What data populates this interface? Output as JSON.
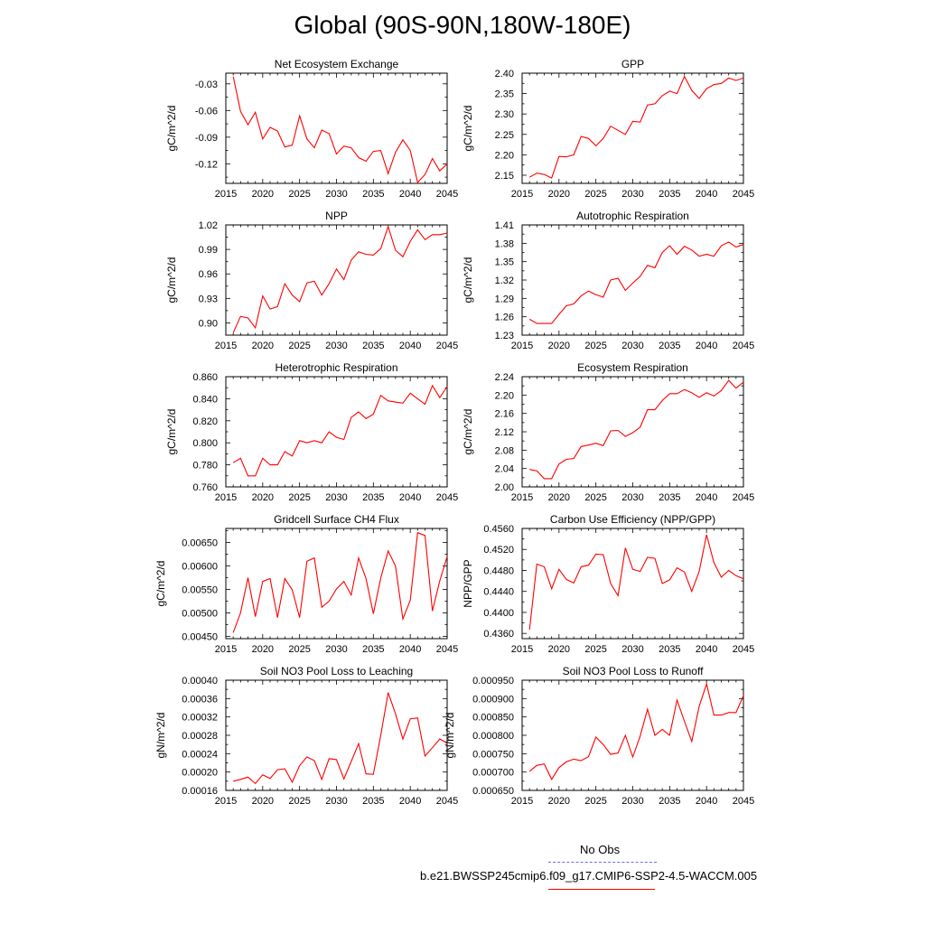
{
  "title": "Global (90S-90N,180W-180E)",
  "colors": {
    "model": "#ff0000",
    "obs": "#6a6aff"
  },
  "legend": {
    "obs_label": "No Obs",
    "model_label": "b.e21.BWSSP245cmip6.f09_g17.CMIP6-SSP2-4.5-WACCM.005"
  },
  "chart_data": [
    {
      "type": "line",
      "title": "Net Ecosystem Exchange",
      "ylabel": "gC/m^2/d",
      "xlim": [
        2015,
        2045
      ],
      "ylim": [
        -0.142,
        -0.018
      ],
      "xticks": [
        2015,
        2020,
        2025,
        2030,
        2035,
        2040,
        2045
      ],
      "yticks": [
        -0.03,
        -0.06,
        -0.09,
        -0.12
      ],
      "ytick_labels": [
        "-0.03",
        "-0.06",
        "-0.09",
        "-0.12"
      ],
      "series": [
        {
          "x": [
            2016,
            2017,
            2018,
            2019,
            2020,
            2021,
            2022,
            2023,
            2024,
            2025,
            2026,
            2027,
            2028,
            2029,
            2030,
            2031,
            2032,
            2033,
            2034,
            2035,
            2036,
            2037,
            2038,
            2039,
            2040,
            2041,
            2042,
            2043,
            2044,
            2045
          ],
          "y": [
            -0.022,
            -0.061,
            -0.076,
            -0.062,
            -0.092,
            -0.079,
            -0.083,
            -0.101,
            -0.099,
            -0.066,
            -0.092,
            -0.102,
            -0.082,
            -0.086,
            -0.109,
            -0.1,
            -0.102,
            -0.113,
            -0.117,
            -0.106,
            -0.105,
            -0.131,
            -0.107,
            -0.093,
            -0.105,
            -0.141,
            -0.132,
            -0.114,
            -0.128,
            -0.12
          ]
        }
      ]
    },
    {
      "type": "line",
      "title": "GPP",
      "ylabel": "gC/m^2/d",
      "xlim": [
        2015,
        2045
      ],
      "ylim": [
        2.13,
        2.4
      ],
      "xticks": [
        2015,
        2020,
        2025,
        2030,
        2035,
        2040,
        2045
      ],
      "yticks": [
        2.15,
        2.2,
        2.25,
        2.3,
        2.35,
        2.4
      ],
      "ytick_labels": [
        "2.15",
        "2.20",
        "2.25",
        "2.30",
        "2.35",
        "2.40"
      ],
      "series": [
        {
          "x": [
            2016,
            2017,
            2018,
            2019,
            2020,
            2021,
            2022,
            2023,
            2024,
            2025,
            2026,
            2027,
            2028,
            2029,
            2030,
            2031,
            2032,
            2033,
            2034,
            2035,
            2036,
            2037,
            2038,
            2039,
            2040,
            2041,
            2042,
            2043,
            2044,
            2045
          ],
          "y": [
            2.145,
            2.155,
            2.152,
            2.143,
            2.196,
            2.195,
            2.2,
            2.245,
            2.24,
            2.222,
            2.24,
            2.27,
            2.26,
            2.25,
            2.282,
            2.28,
            2.322,
            2.325,
            2.345,
            2.356,
            2.35,
            2.392,
            2.358,
            2.338,
            2.362,
            2.372,
            2.375,
            2.388,
            2.382,
            2.388
          ]
        }
      ]
    },
    {
      "type": "line",
      "title": "NPP",
      "ylabel": "gC/m^2/d",
      "xlim": [
        2015,
        2045
      ],
      "ylim": [
        0.885,
        1.02
      ],
      "xticks": [
        2015,
        2020,
        2025,
        2030,
        2035,
        2040,
        2045
      ],
      "yticks": [
        0.9,
        0.93,
        0.96,
        0.99,
        1.02
      ],
      "ytick_labels": [
        "0.90",
        "0.93",
        "0.96",
        "0.99",
        "1.02"
      ],
      "series": [
        {
          "x": [
            2016,
            2017,
            2018,
            2019,
            2020,
            2021,
            2022,
            2023,
            2024,
            2025,
            2026,
            2027,
            2028,
            2029,
            2030,
            2031,
            2032,
            2033,
            2034,
            2035,
            2036,
            2037,
            2038,
            2039,
            2040,
            2041,
            2042,
            2043,
            2044,
            2045
          ],
          "y": [
            0.888,
            0.908,
            0.906,
            0.894,
            0.933,
            0.917,
            0.92,
            0.948,
            0.934,
            0.926,
            0.949,
            0.951,
            0.934,
            0.948,
            0.966,
            0.953,
            0.977,
            0.987,
            0.984,
            0.983,
            0.991,
            1.018,
            0.989,
            0.981,
            1.0,
            1.014,
            1.002,
            1.008,
            1.008,
            1.01
          ]
        }
      ]
    },
    {
      "type": "line",
      "title": "Autotrophic Respiration",
      "ylabel": "gC/m^2/d",
      "xlim": [
        2015,
        2045
      ],
      "ylim": [
        1.23,
        1.41
      ],
      "xticks": [
        2015,
        2020,
        2025,
        2030,
        2035,
        2040,
        2045
      ],
      "yticks": [
        1.23,
        1.26,
        1.29,
        1.32,
        1.35,
        1.38,
        1.41
      ],
      "ytick_labels": [
        "1.23",
        "1.26",
        "1.29",
        "1.32",
        "1.35",
        "1.38",
        "1.41"
      ],
      "series": [
        {
          "x": [
            2016,
            2017,
            2018,
            2019,
            2020,
            2021,
            2022,
            2023,
            2024,
            2025,
            2026,
            2027,
            2028,
            2029,
            2030,
            2031,
            2032,
            2033,
            2034,
            2035,
            2036,
            2037,
            2038,
            2039,
            2040,
            2041,
            2042,
            2043,
            2044,
            2045
          ],
          "y": [
            1.256,
            1.249,
            1.249,
            1.249,
            1.264,
            1.278,
            1.281,
            1.294,
            1.302,
            1.296,
            1.292,
            1.32,
            1.323,
            1.303,
            1.315,
            1.326,
            1.344,
            1.34,
            1.365,
            1.376,
            1.362,
            1.375,
            1.369,
            1.359,
            1.362,
            1.359,
            1.376,
            1.382,
            1.374,
            1.378
          ]
        }
      ]
    },
    {
      "type": "line",
      "title": "Heterotrophic Respiration",
      "ylabel": "gC/m^2/d",
      "xlim": [
        2015,
        2045
      ],
      "ylim": [
        0.76,
        0.86
      ],
      "xticks": [
        2015,
        2020,
        2025,
        2030,
        2035,
        2040,
        2045
      ],
      "yticks": [
        0.76,
        0.78,
        0.8,
        0.82,
        0.84,
        0.86
      ],
      "ytick_labels": [
        "0.760",
        "0.780",
        "0.800",
        "0.820",
        "0.840",
        "0.860"
      ],
      "series": [
        {
          "x": [
            2016,
            2017,
            2018,
            2019,
            2020,
            2021,
            2022,
            2023,
            2024,
            2025,
            2026,
            2027,
            2028,
            2029,
            2030,
            2031,
            2032,
            2033,
            2034,
            2035,
            2036,
            2037,
            2038,
            2039,
            2040,
            2041,
            2042,
            2043,
            2044,
            2045
          ],
          "y": [
            0.782,
            0.786,
            0.77,
            0.77,
            0.786,
            0.78,
            0.78,
            0.792,
            0.788,
            0.802,
            0.8,
            0.802,
            0.8,
            0.81,
            0.805,
            0.803,
            0.823,
            0.828,
            0.822,
            0.826,
            0.843,
            0.838,
            0.837,
            0.836,
            0.845,
            0.84,
            0.835,
            0.852,
            0.841,
            0.851
          ]
        }
      ]
    },
    {
      "type": "line",
      "title": "Ecosystem Respiration",
      "ylabel": "gC/m^2/d",
      "xlim": [
        2015,
        2045
      ],
      "ylim": [
        2.0,
        2.24
      ],
      "xticks": [
        2015,
        2020,
        2025,
        2030,
        2035,
        2040,
        2045
      ],
      "yticks": [
        2.0,
        2.04,
        2.08,
        2.12,
        2.16,
        2.2,
        2.24
      ],
      "ytick_labels": [
        "2.00",
        "2.04",
        "2.08",
        "2.12",
        "2.16",
        "2.20",
        "2.24"
      ],
      "series": [
        {
          "x": [
            2016,
            2017,
            2018,
            2019,
            2020,
            2021,
            2022,
            2023,
            2024,
            2025,
            2026,
            2027,
            2028,
            2029,
            2030,
            2031,
            2032,
            2033,
            2034,
            2035,
            2036,
            2037,
            2038,
            2039,
            2040,
            2041,
            2042,
            2043,
            2044,
            2045
          ],
          "y": [
            2.038,
            2.035,
            2.018,
            2.018,
            2.05,
            2.06,
            2.062,
            2.088,
            2.091,
            2.095,
            2.09,
            2.122,
            2.123,
            2.11,
            2.118,
            2.13,
            2.168,
            2.168,
            2.188,
            2.203,
            2.203,
            2.212,
            2.205,
            2.195,
            2.205,
            2.198,
            2.21,
            2.232,
            2.215,
            2.228
          ]
        }
      ]
    },
    {
      "type": "line",
      "title": "Gridcell Surface CH4 Flux",
      "ylabel": "gC/m^2/d",
      "xlim": [
        2015,
        2045
      ],
      "ylim": [
        0.00445,
        0.0068
      ],
      "xticks": [
        2015,
        2020,
        2025,
        2030,
        2035,
        2040,
        2045
      ],
      "yticks": [
        0.0045,
        0.005,
        0.0055,
        0.006,
        0.0065
      ],
      "ytick_labels": [
        "0.00450",
        "0.00500",
        "0.00550",
        "0.00600",
        "0.00650"
      ],
      "series": [
        {
          "x": [
            2016,
            2017,
            2018,
            2019,
            2020,
            2021,
            2022,
            2023,
            2024,
            2025,
            2026,
            2027,
            2028,
            2029,
            2030,
            2031,
            2032,
            2033,
            2034,
            2035,
            2036,
            2037,
            2038,
            2039,
            2040,
            2041,
            2042,
            2043,
            2044,
            2045
          ],
          "y": [
            0.00458,
            0.005,
            0.00575,
            0.00492,
            0.00567,
            0.00573,
            0.0049,
            0.00573,
            0.00549,
            0.0049,
            0.0061,
            0.00617,
            0.00512,
            0.00525,
            0.00551,
            0.00567,
            0.00538,
            0.00617,
            0.00573,
            0.00498,
            0.00574,
            0.00632,
            0.006,
            0.00487,
            0.00527,
            0.00671,
            0.00665,
            0.00504,
            0.00568,
            0.0062
          ]
        }
      ]
    },
    {
      "type": "line",
      "title": "Carbon Use Efficiency (NPP/GPP)",
      "ylabel": "NPP/GPP",
      "xlim": [
        2015,
        2045
      ],
      "ylim": [
        0.435,
        0.456
      ],
      "xticks": [
        2015,
        2020,
        2025,
        2030,
        2035,
        2040,
        2045
      ],
      "yticks": [
        0.436,
        0.44,
        0.444,
        0.448,
        0.452,
        0.456
      ],
      "ytick_labels": [
        "0.4360",
        "0.4400",
        "0.4440",
        "0.4480",
        "0.4520",
        "0.4560"
      ],
      "series": [
        {
          "x": [
            2016,
            2017,
            2018,
            2019,
            2020,
            2021,
            2022,
            2023,
            2024,
            2025,
            2026,
            2027,
            2028,
            2029,
            2030,
            2031,
            2032,
            2033,
            2034,
            2035,
            2036,
            2037,
            2038,
            2039,
            2040,
            2041,
            2042,
            2043,
            2044,
            2045
          ],
          "y": [
            0.4367,
            0.4492,
            0.4487,
            0.4445,
            0.4482,
            0.4463,
            0.4456,
            0.4487,
            0.449,
            0.4511,
            0.451,
            0.4455,
            0.4432,
            0.4523,
            0.4482,
            0.4478,
            0.4505,
            0.4503,
            0.4455,
            0.4462,
            0.4485,
            0.4477,
            0.444,
            0.4478,
            0.4548,
            0.4495,
            0.4467,
            0.448,
            0.447,
            0.4464
          ]
        }
      ]
    },
    {
      "type": "line",
      "title": "Soil NO3 Pool Loss to Leaching",
      "ylabel": "gN/m^2/d",
      "xlim": [
        2015,
        2045
      ],
      "ylim": [
        0.00016,
        0.0004
      ],
      "xticks": [
        2015,
        2020,
        2025,
        2030,
        2035,
        2040,
        2045
      ],
      "yticks": [
        0.00016,
        0.0002,
        0.00024,
        0.00028,
        0.00032,
        0.00036,
        0.0004
      ],
      "ytick_labels": [
        "0.00016",
        "0.00020",
        "0.00024",
        "0.00028",
        "0.00032",
        "0.00036",
        "0.00040"
      ],
      "series": [
        {
          "x": [
            2016,
            2017,
            2018,
            2019,
            2020,
            2021,
            2022,
            2023,
            2024,
            2025,
            2026,
            2027,
            2028,
            2029,
            2030,
            2031,
            2032,
            2033,
            2034,
            2035,
            2036,
            2037,
            2038,
            2039,
            2040,
            2041,
            2042,
            2043,
            2044,
            2045
          ],
          "y": [
            0.00018,
            0.000184,
            0.000189,
            0.000175,
            0.000194,
            0.000186,
            0.000205,
            0.000207,
            0.000178,
            0.000214,
            0.000233,
            0.000225,
            0.000184,
            0.000229,
            0.000227,
            0.000185,
            0.000223,
            0.000262,
            0.000196,
            0.000195,
            0.00028,
            0.000373,
            0.000327,
            0.000272,
            0.000316,
            0.000318,
            0.000235,
            0.000253,
            0.000272,
            0.000263
          ]
        }
      ]
    },
    {
      "type": "line",
      "title": "Soil NO3 Pool Loss to Runoff",
      "ylabel": "gN/m^2/d",
      "xlim": [
        2015,
        2045
      ],
      "ylim": [
        0.00065,
        0.00095
      ],
      "xticks": [
        2015,
        2020,
        2025,
        2030,
        2035,
        2040,
        2045
      ],
      "yticks": [
        0.00065,
        0.0007,
        0.00075,
        0.0008,
        0.00085,
        0.0009,
        0.00095
      ],
      "ytick_labels": [
        "0.000650",
        "0.000700",
        "0.000750",
        "0.000800",
        "0.000850",
        "0.000900",
        "0.000950"
      ],
      "series": [
        {
          "x": [
            2016,
            2017,
            2018,
            2019,
            2020,
            2021,
            2022,
            2023,
            2024,
            2025,
            2026,
            2027,
            2028,
            2029,
            2030,
            2031,
            2032,
            2033,
            2034,
            2035,
            2036,
            2037,
            2038,
            2039,
            2040,
            2041,
            2042,
            2043,
            2044,
            2045
          ],
          "y": [
            0.000702,
            0.000718,
            0.000722,
            0.00068,
            0.000712,
            0.000728,
            0.000735,
            0.000731,
            0.000742,
            0.000795,
            0.000775,
            0.000748,
            0.000752,
            0.0008,
            0.000741,
            0.000798,
            0.000871,
            0.0008,
            0.000816,
            0.0008,
            0.000896,
            0.000838,
            0.000783,
            0.000879,
            0.00094,
            0.000855,
            0.000855,
            0.000862,
            0.000862,
            0.000908
          ]
        }
      ]
    }
  ]
}
